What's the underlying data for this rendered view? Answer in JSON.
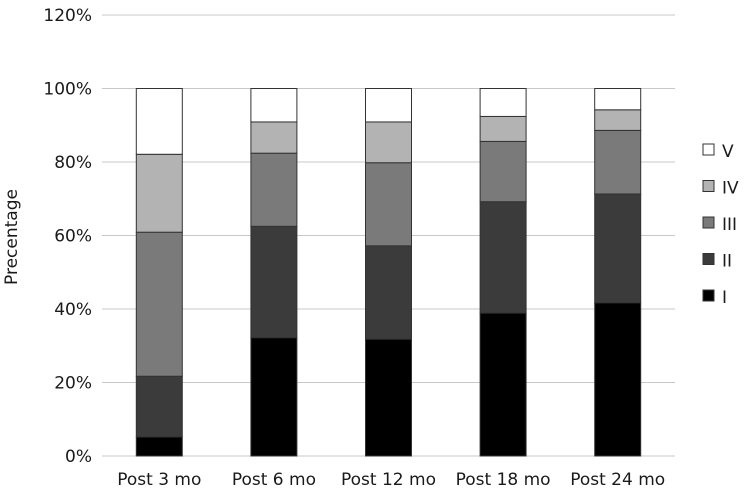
{
  "chart_data": {
    "type": "bar",
    "stacked": true,
    "xlabel": "",
    "ylabel": "Precentage",
    "ylim": [
      0,
      120
    ],
    "yticks": [
      "0%",
      "20%",
      "40%",
      "60%",
      "80%",
      "100%",
      "120%"
    ],
    "ytick_values": [
      0,
      20,
      40,
      60,
      80,
      100,
      120
    ],
    "grid": true,
    "legend_position": "right",
    "categories": [
      "Post 3 mo",
      "Post 6 mo",
      "Post 12 mo",
      "Post 18 mo",
      "Post 24 mo"
    ],
    "series": [
      {
        "name": "I",
        "color": "#000000",
        "values": [
          5.2,
          32.2,
          31.8,
          38.9,
          41.7
        ]
      },
      {
        "name": "II",
        "color": "#3b3b3b",
        "values": [
          16.5,
          30.3,
          25.4,
          30.3,
          29.6
        ]
      },
      {
        "name": "III",
        "color": "#7a7a7a",
        "values": [
          39.2,
          19.9,
          22.6,
          16.4,
          17.3
        ]
      },
      {
        "name": "IV",
        "color": "#b3b3b3",
        "values": [
          21.2,
          8.5,
          11.1,
          6.8,
          5.6
        ]
      },
      {
        "name": "V",
        "color": "#ffffff",
        "values": [
          17.9,
          9.1,
          9.1,
          7.6,
          5.8
        ]
      }
    ]
  }
}
